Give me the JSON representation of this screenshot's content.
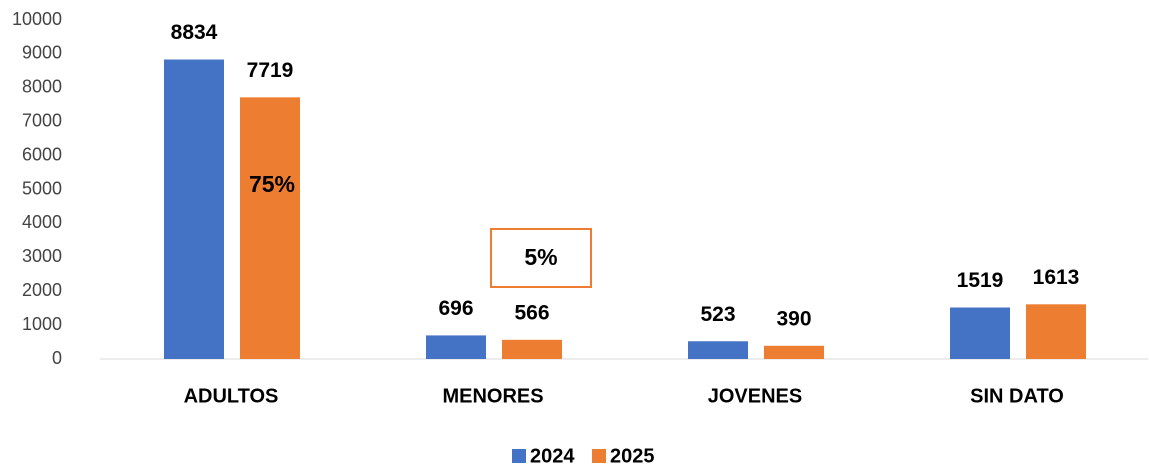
{
  "chart_data": {
    "type": "bar",
    "categories": [
      "ADULTOS",
      "MENORES",
      "JOVENES",
      "SIN DATO"
    ],
    "series": [
      {
        "name": "2024",
        "color": "#4472c4",
        "values": [
          8834,
          696,
          523,
          1519
        ]
      },
      {
        "name": "2025",
        "color": "#ed7d31",
        "values": [
          7719,
          566,
          390,
          1613
        ]
      }
    ],
    "annotations": [
      "75%",
      "5%"
    ],
    "ylim": [
      0,
      10000
    ],
    "yticks": [
      0,
      1000,
      2000,
      3000,
      4000,
      5000,
      6000,
      7000,
      8000,
      9000,
      10000
    ],
    "grid": false,
    "legend": "bottom"
  }
}
